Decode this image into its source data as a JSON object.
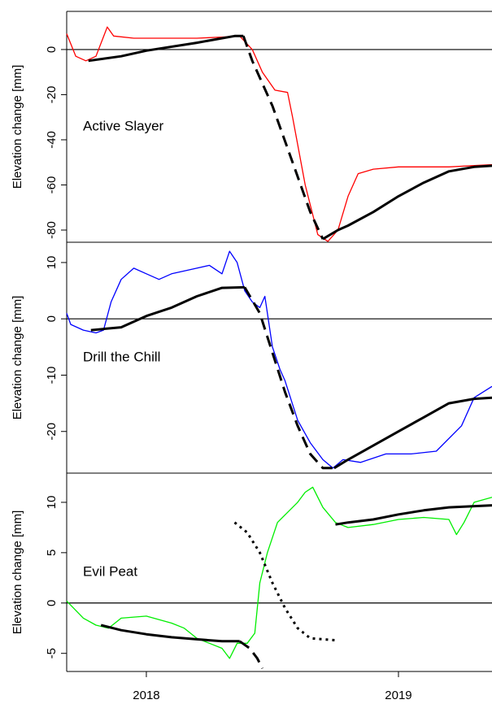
{
  "chart_data": [
    {
      "type": "line",
      "annotation": "Active Slayer",
      "ylabel": "Elevation change [mm]",
      "xlim": [
        2017.684,
        2019.371
      ],
      "ylim": [
        -85.4,
        16.9
      ],
      "yticks": [
        0,
        -20,
        -40,
        -60,
        -80
      ],
      "zero_line": true,
      "series": [
        {
          "color": "#ff0000",
          "width": 1.3,
          "dash": "solid",
          "x": [
            2017.684,
            2017.72,
            2017.76,
            2017.8,
            2017.845,
            2017.87,
            2017.95,
            2018.1,
            2018.2,
            2018.3,
            2018.37,
            2018.42,
            2018.46,
            2018.51,
            2018.56,
            2018.58,
            2018.63,
            2018.68,
            2018.72,
            2018.76,
            2018.8,
            2018.84,
            2018.9,
            2019.0,
            2019.1,
            2019.2,
            2019.371
          ],
          "values": [
            7,
            -3,
            -5,
            -3,
            10,
            6,
            5,
            5,
            5,
            5.5,
            6,
            0,
            -10,
            -18,
            -19,
            -30,
            -60,
            -82,
            -85,
            -80,
            -65,
            -55,
            -53,
            -52,
            -52,
            -52,
            -51
          ]
        },
        {
          "color": "#000000",
          "width": 3,
          "dash": "solid",
          "x": [
            2017.77,
            2017.9,
            2018.0,
            2018.2,
            2018.35,
            2018.385
          ],
          "values": [
            -5,
            -3,
            -0.5,
            3,
            6,
            6
          ]
        },
        {
          "color": "#000000",
          "width": 3,
          "dash": "solid",
          "x": [
            2018.7,
            2018.76,
            2018.8,
            2018.9,
            2019.0,
            2019.1,
            2019.2,
            2019.3,
            2019.371
          ],
          "values": [
            -84,
            -80,
            -78,
            -72,
            -65,
            -59,
            -54,
            -52,
            -51.5
          ]
        },
        {
          "color": "#000000",
          "width": 3,
          "dash": "dashed",
          "x": [
            2018.385,
            2018.42,
            2018.5,
            2018.58,
            2018.65,
            2018.7
          ],
          "values": [
            6,
            -5,
            -25,
            -50,
            -72,
            -84
          ]
        }
      ]
    },
    {
      "type": "line",
      "annotation": "Drill the Chill",
      "ylabel": "Elevation change [mm]",
      "xlim": [
        2017.684,
        2019.371
      ],
      "ylim": [
        -27.4,
        13.6
      ],
      "yticks": [
        10,
        0,
        -10,
        -20
      ],
      "zero_line": true,
      "series": [
        {
          "color": "#0000ff",
          "width": 1.3,
          "dash": "solid",
          "x": [
            2017.684,
            2017.7,
            2017.75,
            2017.8,
            2017.83,
            2017.86,
            2017.9,
            2017.95,
            2018.0,
            2018.05,
            2018.1,
            2018.2,
            2018.25,
            2018.3,
            2018.33,
            2018.36,
            2018.39,
            2018.42,
            2018.45,
            2018.47,
            2018.5,
            2018.53,
            2018.55,
            2018.6,
            2018.65,
            2018.7,
            2018.74,
            2018.78,
            2018.85,
            2018.95,
            2019.05,
            2019.15,
            2019.25,
            2019.3,
            2019.371
          ],
          "values": [
            1,
            -1,
            -2,
            -2.5,
            -2,
            3,
            7,
            9,
            8,
            7,
            8,
            9,
            9.5,
            8,
            12,
            10,
            5,
            3,
            2,
            4,
            -5,
            -9,
            -11,
            -18,
            -22,
            -25,
            -26.5,
            -25,
            -25.5,
            -24,
            -24,
            -23.5,
            -19,
            -14,
            -12
          ]
        },
        {
          "color": "#000000",
          "width": 3,
          "dash": "solid",
          "x": [
            2017.78,
            2017.9,
            2018.0,
            2018.1,
            2018.2,
            2018.3,
            2018.39
          ],
          "values": [
            -2,
            -1.5,
            0.5,
            2,
            4,
            5.5,
            5.6
          ]
        },
        {
          "color": "#000000",
          "width": 3,
          "dash": "solid",
          "x": [
            2018.745,
            2018.8,
            2018.9,
            2019.0,
            2019.1,
            2019.2,
            2019.3,
            2019.371
          ],
          "values": [
            -26.5,
            -25,
            -22.5,
            -20,
            -17.5,
            -15,
            -14.2,
            -14
          ]
        },
        {
          "color": "#000000",
          "width": 3,
          "dash": "dashed",
          "x": [
            2018.39,
            2018.45,
            2018.5,
            2018.55,
            2018.6,
            2018.65,
            2018.7,
            2018.745
          ],
          "values": [
            5.6,
            1,
            -6,
            -13,
            -19,
            -24,
            -26.5,
            -26.5
          ]
        }
      ]
    },
    {
      "type": "line",
      "annotation": "Evil Peat",
      "ylabel": "Elevation change [mm]",
      "xlim": [
        2017.684,
        2019.371
      ],
      "ylim": [
        -6.8,
        12.9
      ],
      "yticks": [
        10,
        5,
        0,
        -5
      ],
      "xticks": [
        2018,
        2019
      ],
      "zero_line": true,
      "series": [
        {
          "color": "#00ee00",
          "width": 1.3,
          "dash": "solid",
          "x": [
            2017.684,
            2017.75,
            2017.8,
            2017.85,
            2017.9,
            2018.0,
            2018.1,
            2018.15,
            2018.2,
            2018.25,
            2018.3,
            2018.33,
            2018.36,
            2018.4,
            2018.43,
            2018.45,
            2018.48,
            2018.52,
            2018.56,
            2018.6,
            2018.63,
            2018.66,
            2018.7,
            2018.75,
            2018.8,
            2018.9,
            2019.0,
            2019.1,
            2019.2,
            2019.23,
            2019.26,
            2019.3,
            2019.371
          ],
          "values": [
            0.2,
            -1.5,
            -2.2,
            -2.5,
            -1.5,
            -1.3,
            -2,
            -2.5,
            -3.5,
            -4,
            -4.5,
            -5.5,
            -4,
            -4,
            -3,
            2,
            5,
            8,
            9,
            10,
            11,
            11.5,
            9.5,
            8,
            7.5,
            7.8,
            8.3,
            8.5,
            8.3,
            6.8,
            8,
            10,
            10.5
          ]
        },
        {
          "color": "#000000",
          "width": 3,
          "dash": "solid",
          "x": [
            2017.82,
            2017.9,
            2018.0,
            2018.1,
            2018.2,
            2018.3,
            2018.37
          ],
          "values": [
            -2.2,
            -2.7,
            -3.1,
            -3.4,
            -3.6,
            -3.8,
            -3.8
          ]
        },
        {
          "color": "#000000",
          "width": 3,
          "dash": "solid",
          "x": [
            2018.75,
            2018.8,
            2018.9,
            2019.0,
            2019.1,
            2019.2,
            2019.371
          ],
          "values": [
            7.8,
            8,
            8.3,
            8.8,
            9.2,
            9.5,
            9.7
          ]
        },
        {
          "color": "#000000",
          "width": 3,
          "dash": "dashed",
          "x": [
            2018.37,
            2018.41,
            2018.44,
            2018.46
          ],
          "values": [
            -3.8,
            -4.5,
            -5.5,
            -6.5
          ]
        },
        {
          "color": "#000000",
          "width": 3,
          "dash": "dotted",
          "x": [
            2018.35,
            2018.4,
            2018.45,
            2018.5,
            2018.55,
            2018.6,
            2018.65,
            2018.75
          ],
          "values": [
            8,
            7,
            5,
            2,
            -0.5,
            -2.5,
            -3.5,
            -3.7
          ]
        }
      ]
    }
  ]
}
